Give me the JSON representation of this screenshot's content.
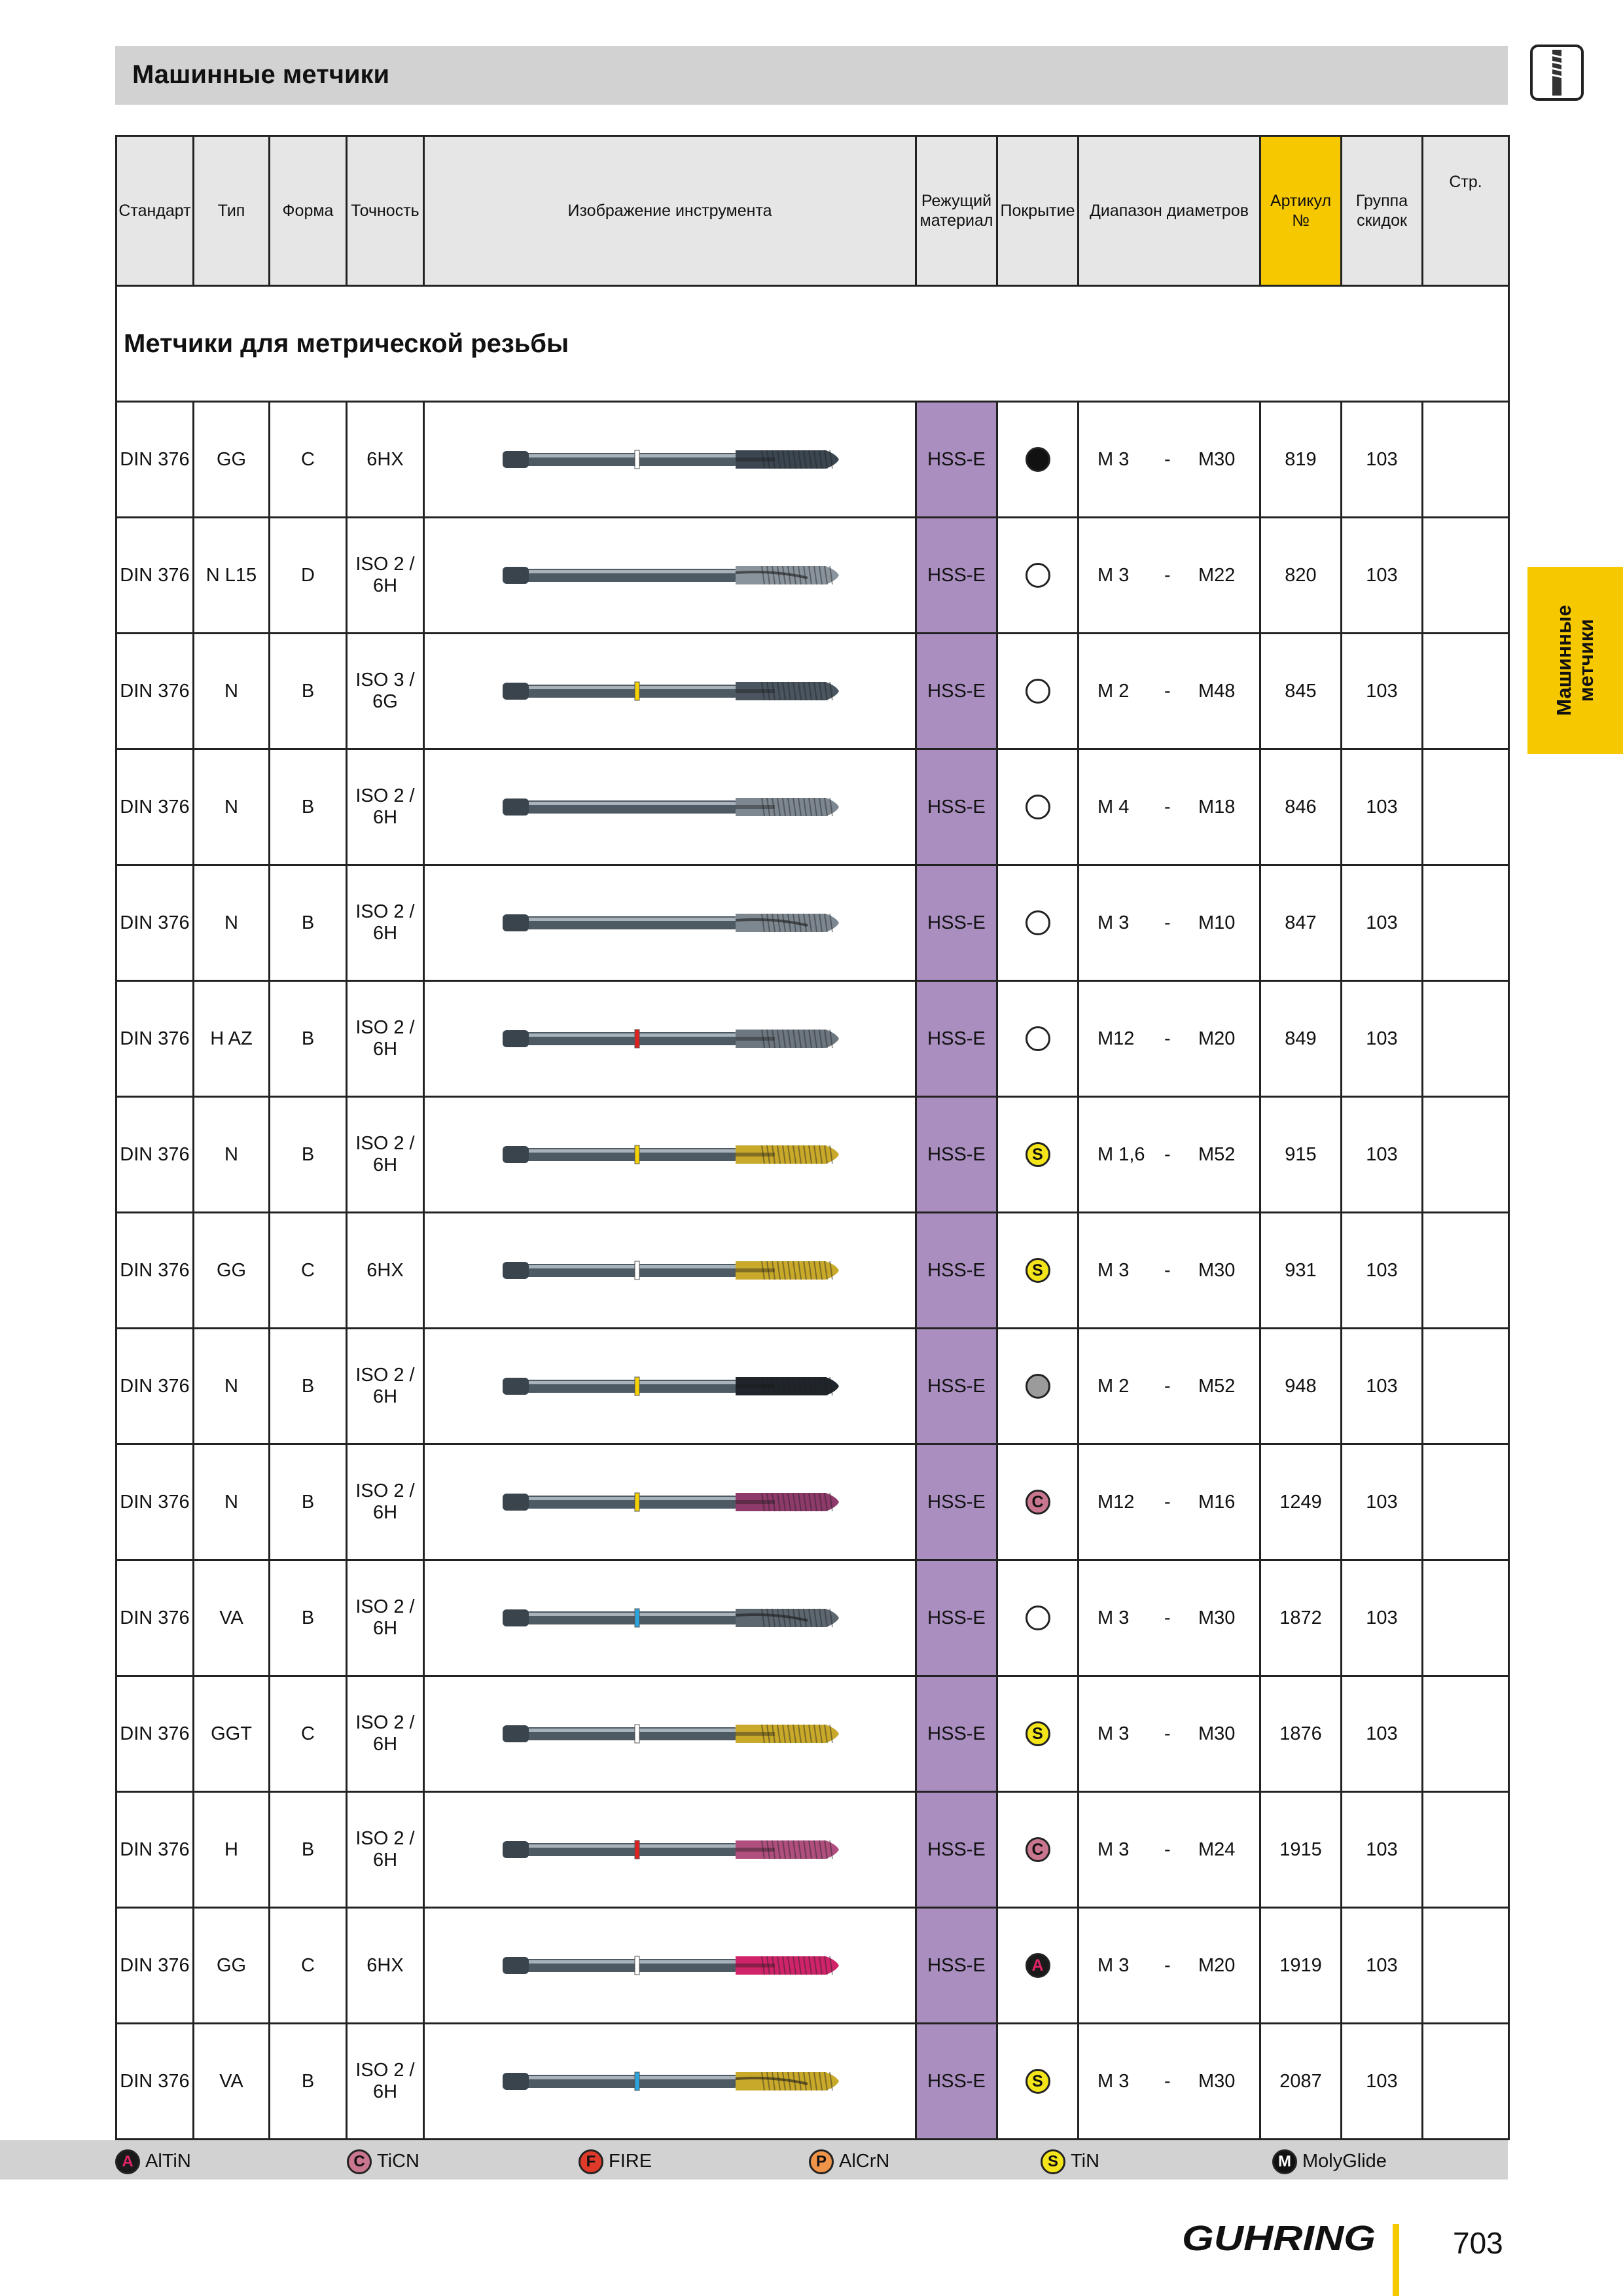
{
  "header": {
    "title": "Машинные метчики"
  },
  "side_tab": {
    "line1": "Машинные",
    "line2": "метчики"
  },
  "columns": {
    "standard": "Стандарт",
    "type": "Тип",
    "form": "Форма",
    "accuracy": "Точность",
    "image": "Изображение инструмента",
    "material": "Режущий материал",
    "coating": "Покрытие",
    "diameter": "Диапазон диаметров",
    "article": "Артикул №",
    "discount": "Группа скидок",
    "page": "Стр."
  },
  "section_title": "Метчики для метрической резьбы",
  "rows": [
    {
      "standard": "DIN 376",
      "type": "GG",
      "form": "C",
      "accuracy": "6HX",
      "material": "HSS-E",
      "coating": "black",
      "coating_letter": "",
      "d_from": "M 3",
      "d_to": "M30",
      "article": "819",
      "discount": "103",
      "ring_color": "#ffffff",
      "tip_color": "#3b4650",
      "style": "plain"
    },
    {
      "standard": "DIN 376",
      "type": "N L15",
      "form": "D",
      "accuracy": "ISO 2 / 6H",
      "material": "HSS-E",
      "coating": "white",
      "coating_letter": "",
      "d_from": "M 3",
      "d_to": "M22",
      "article": "820",
      "discount": "103",
      "ring_color": "",
      "tip_color": "#8a949c",
      "style": "spiral"
    },
    {
      "standard": "DIN 376",
      "type": "N",
      "form": "B",
      "accuracy": "ISO 3 / 6G",
      "material": "HSS-E",
      "coating": "white",
      "coating_letter": "",
      "d_from": "M 2",
      "d_to": "M48",
      "article": "845",
      "discount": "103",
      "ring_color": "#f6d200",
      "tip_color": "#4a5560",
      "style": "plain"
    },
    {
      "standard": "DIN 376",
      "type": "N",
      "form": "B",
      "accuracy": "ISO 2 / 6H",
      "material": "HSS-E",
      "coating": "white",
      "coating_letter": "",
      "d_from": "M 4",
      "d_to": "M18",
      "article": "846",
      "discount": "103",
      "ring_color": "",
      "tip_color": "#7d8790",
      "style": "plain"
    },
    {
      "standard": "DIN 376",
      "type": "N",
      "form": "B",
      "accuracy": "ISO 2 / 6H",
      "material": "HSS-E",
      "coating": "white",
      "coating_letter": "",
      "d_from": "M 3",
      "d_to": "M10",
      "article": "847",
      "discount": "103",
      "ring_color": "",
      "tip_color": "#7d8790",
      "style": "spiral"
    },
    {
      "standard": "DIN 376",
      "type": "H AZ",
      "form": "B",
      "accuracy": "ISO 2 / 6H",
      "material": "HSS-E",
      "coating": "white",
      "coating_letter": "",
      "d_from": "M12",
      "d_to": "M20",
      "article": "849",
      "discount": "103",
      "ring_color": "#e02020",
      "tip_color": "#6d7780",
      "style": "plain"
    },
    {
      "standard": "DIN 376",
      "type": "N",
      "form": "B",
      "accuracy": "ISO 2 / 6H",
      "material": "HSS-E",
      "coating": "S",
      "coating_letter": "S",
      "d_from": "M 1,6",
      "d_to": "M52",
      "article": "915",
      "discount": "103",
      "ring_color": "#f6d200",
      "tip_color": "#c9a92a",
      "style": "plain"
    },
    {
      "standard": "DIN 376",
      "type": "GG",
      "form": "C",
      "accuracy": "6HX",
      "material": "HSS-E",
      "coating": "S",
      "coating_letter": "S",
      "d_from": "M 3",
      "d_to": "M30",
      "article": "931",
      "discount": "103",
      "ring_color": "#ffffff",
      "tip_color": "#c9a92a",
      "style": "plain"
    },
    {
      "standard": "DIN 376",
      "type": "N",
      "form": "B",
      "accuracy": "ISO 2 / 6H",
      "material": "HSS-E",
      "coating": "grey",
      "coating_letter": "",
      "d_from": "M 2",
      "d_to": "M52",
      "article": "948",
      "discount": "103",
      "ring_color": "#f6d200",
      "tip_color": "#1f252b",
      "style": "plain"
    },
    {
      "standard": "DIN 376",
      "type": "N",
      "form": "B",
      "accuracy": "ISO 2 / 6H",
      "material": "HSS-E",
      "coating": "C",
      "coating_letter": "C",
      "d_from": "M12",
      "d_to": "M16",
      "article": "1249",
      "discount": "103",
      "ring_color": "#f6d200",
      "tip_color": "#8e3a6a",
      "style": "plain"
    },
    {
      "standard": "DIN 376",
      "type": "VA",
      "form": "B",
      "accuracy": "ISO 2 / 6H",
      "material": "HSS-E",
      "coating": "white",
      "coating_letter": "",
      "d_from": "M 3",
      "d_to": "M30",
      "article": "1872",
      "discount": "103",
      "ring_color": "#2aa5e0",
      "tip_color": "#5d6770",
      "style": "spiral"
    },
    {
      "standard": "DIN 376",
      "type": "GGT",
      "form": "C",
      "accuracy": "ISO 2 / 6H",
      "material": "HSS-E",
      "coating": "S",
      "coating_letter": "S",
      "d_from": "M 3",
      "d_to": "M30",
      "article": "1876",
      "discount": "103",
      "ring_color": "#ffffff",
      "tip_color": "#c9a92a",
      "style": "plain"
    },
    {
      "standard": "DIN 376",
      "type": "H",
      "form": "B",
      "accuracy": "ISO 2 / 6H",
      "material": "HSS-E",
      "coating": "C",
      "coating_letter": "C",
      "d_from": "M 3",
      "d_to": "M24",
      "article": "1915",
      "discount": "103",
      "ring_color": "#e02020",
      "tip_color": "#b04f7e",
      "style": "plain"
    },
    {
      "standard": "DIN 376",
      "type": "GG",
      "form": "C",
      "accuracy": "6HX",
      "material": "HSS-E",
      "coating": "A",
      "coating_letter": "A",
      "d_from": "M 3",
      "d_to": "M20",
      "article": "1919",
      "discount": "103",
      "ring_color": "#ffffff",
      "tip_color": "#d0246a",
      "style": "plain"
    },
    {
      "standard": "DIN 376",
      "type": "VA",
      "form": "B",
      "accuracy": "ISO 2 / 6H",
      "material": "HSS-E",
      "coating": "S",
      "coating_letter": "S",
      "d_from": "M 3",
      "d_to": "M30",
      "article": "2087",
      "discount": "103",
      "ring_color": "#2aa5e0",
      "tip_color": "#c9a92a",
      "style": "spiral"
    }
  ],
  "legend": [
    {
      "letter": "A",
      "label": "AlTiN"
    },
    {
      "letter": "C",
      "label": "TiCN"
    },
    {
      "letter": "F",
      "label": "FIRE"
    },
    {
      "letter": "P",
      "label": "AlCrN"
    },
    {
      "letter": "S",
      "label": "TiN"
    },
    {
      "letter": "M",
      "label": "MolyGlide"
    }
  ],
  "footer": {
    "brand": "GUHRING",
    "page_number": "703"
  }
}
